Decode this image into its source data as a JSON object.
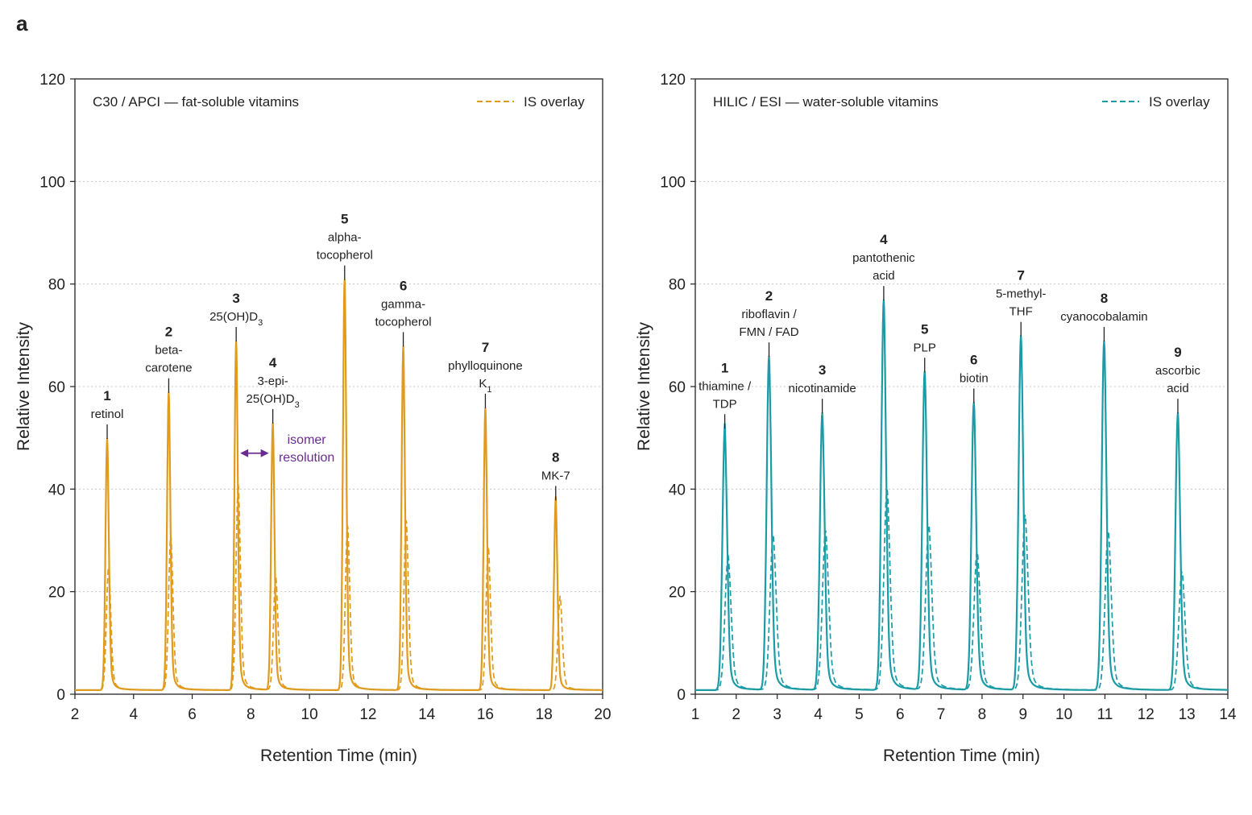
{
  "figure": {
    "panel_letter": "a"
  },
  "chart_data": [
    {
      "type": "line",
      "title": "C30 / APCI — fat-soluble vitamins",
      "xlabel": "Retention Time (min)",
      "ylabel": "Relative Intensity",
      "xlim": [
        2,
        20
      ],
      "ylim": [
        0,
        120
      ],
      "xticks": [
        2,
        4,
        6,
        8,
        10,
        12,
        14,
        16,
        18,
        20
      ],
      "yticks": [
        0,
        20,
        40,
        60,
        80,
        100,
        120
      ],
      "grid": "horizontal dotted",
      "color": "#E09A1C",
      "legend": {
        "label": "IS overlay",
        "position": "top-right"
      },
      "baseline": 0.8,
      "series": [
        {
          "style": "solid",
          "peaks": [
            {
              "rt": 3.1,
              "height": 49
            },
            {
              "rt": 5.2,
              "height": 58
            },
            {
              "rt": 7.5,
              "height": 68
            },
            {
              "rt": 8.75,
              "height": 52
            },
            {
              "rt": 11.2,
              "height": 80
            },
            {
              "rt": 13.2,
              "height": 67
            },
            {
              "rt": 16.0,
              "height": 55
            },
            {
              "rt": 18.4,
              "height": 37
            }
          ]
        },
        {
          "name": "IS overlay",
          "style": "dashed",
          "peaks": [
            {
              "rt": 3.15,
              "height": 24
            },
            {
              "rt": 5.27,
              "height": 30
            },
            {
              "rt": 7.57,
              "height": 40
            },
            {
              "rt": 8.85,
              "height": 22
            },
            {
              "rt": 11.3,
              "height": 32
            },
            {
              "rt": 13.3,
              "height": 33
            },
            {
              "rt": 16.1,
              "height": 28
            },
            {
              "rt": 18.55,
              "height": 18
            }
          ]
        }
      ],
      "peak_labels": [
        {
          "num": "1",
          "lines": [
            "retinol"
          ],
          "rt": 3.1,
          "height": 49
        },
        {
          "num": "2",
          "lines": [
            "beta-",
            "carotene"
          ],
          "rt": 5.2,
          "height": 58
        },
        {
          "num": "3",
          "lines": [
            "25(OH)D",
            "3"
          ],
          "rt": 7.5,
          "height": 68
        },
        {
          "num": "4",
          "lines": [
            "3-epi-",
            "25(OH)D",
            "3"
          ],
          "rt": 8.75,
          "height": 52
        },
        {
          "num": "5",
          "lines": [
            "alpha-",
            "tocopherol"
          ],
          "rt": 11.2,
          "height": 80
        },
        {
          "num": "6",
          "lines": [
            "gamma-",
            "tocopherol"
          ],
          "rt": 13.2,
          "height": 67
        },
        {
          "num": "7",
          "lines": [
            "phylloquinone",
            "K",
            "1"
          ],
          "rt": 16.0,
          "height": 55
        },
        {
          "num": "8",
          "lines": [
            "MK-7"
          ],
          "rt": 18.4,
          "height": 37
        }
      ],
      "annotation": {
        "lines": [
          "isomer",
          "resolution"
        ],
        "color": "#6A2C91",
        "between": [
          7.5,
          8.75
        ],
        "y": 47
      }
    },
    {
      "type": "line",
      "title": "HILIC / ESI — water-soluble vitamins",
      "xlabel": "Retention Time (min)",
      "ylabel": "Relative Intensity",
      "xlim": [
        1,
        14
      ],
      "ylim": [
        0,
        120
      ],
      "xticks": [
        1,
        2,
        3,
        4,
        5,
        6,
        7,
        8,
        9,
        10,
        11,
        12,
        13,
        14
      ],
      "yticks": [
        0,
        20,
        40,
        60,
        80,
        100,
        120
      ],
      "grid": "horizontal dotted",
      "color": "#1A9BA6",
      "legend": {
        "label": "IS overlay",
        "position": "top-right"
      },
      "baseline": 0.8,
      "series": [
        {
          "style": "solid",
          "peaks": [
            {
              "rt": 1.72,
              "height": 51
            },
            {
              "rt": 2.8,
              "height": 65
            },
            {
              "rt": 4.1,
              "height": 54
            },
            {
              "rt": 5.6,
              "height": 76
            },
            {
              "rt": 6.6,
              "height": 62
            },
            {
              "rt": 7.8,
              "height": 56
            },
            {
              "rt": 8.95,
              "height": 69
            },
            {
              "rt": 10.98,
              "height": 68
            },
            {
              "rt": 12.78,
              "height": 54
            }
          ]
        },
        {
          "name": "IS overlay",
          "style": "dashed",
          "peaks": [
            {
              "rt": 1.8,
              "height": 26
            },
            {
              "rt": 2.9,
              "height": 30
            },
            {
              "rt": 4.18,
              "height": 31
            },
            {
              "rt": 5.68,
              "height": 39
            },
            {
              "rt": 6.7,
              "height": 32
            },
            {
              "rt": 7.88,
              "height": 27
            },
            {
              "rt": 9.05,
              "height": 34
            },
            {
              "rt": 11.08,
              "height": 31
            },
            {
              "rt": 12.88,
              "height": 23
            }
          ]
        }
      ],
      "peak_labels": [
        {
          "num": "1",
          "lines": [
            "thiamine /",
            "TDP"
          ],
          "rt": 1.72,
          "height": 51
        },
        {
          "num": "2",
          "lines": [
            "riboflavin /",
            "FMN / FAD"
          ],
          "rt": 2.8,
          "height": 65
        },
        {
          "num": "3",
          "lines": [
            "nicotinamide"
          ],
          "rt": 4.1,
          "height": 54
        },
        {
          "num": "4",
          "lines": [
            "pantothenic",
            "acid"
          ],
          "rt": 5.6,
          "height": 76
        },
        {
          "num": "5",
          "lines": [
            "PLP"
          ],
          "rt": 6.6,
          "height": 62
        },
        {
          "num": "6",
          "lines": [
            "biotin"
          ],
          "rt": 7.8,
          "height": 56
        },
        {
          "num": "7",
          "lines": [
            "5-methyl-",
            "THF"
          ],
          "rt": 8.95,
          "height": 69
        },
        {
          "num": "8",
          "lines": [
            "cyanocobalamin"
          ],
          "rt": 10.98,
          "height": 68
        },
        {
          "num": "9",
          "lines": [
            "ascorbic",
            "acid"
          ],
          "rt": 12.78,
          "height": 54
        }
      ]
    }
  ]
}
